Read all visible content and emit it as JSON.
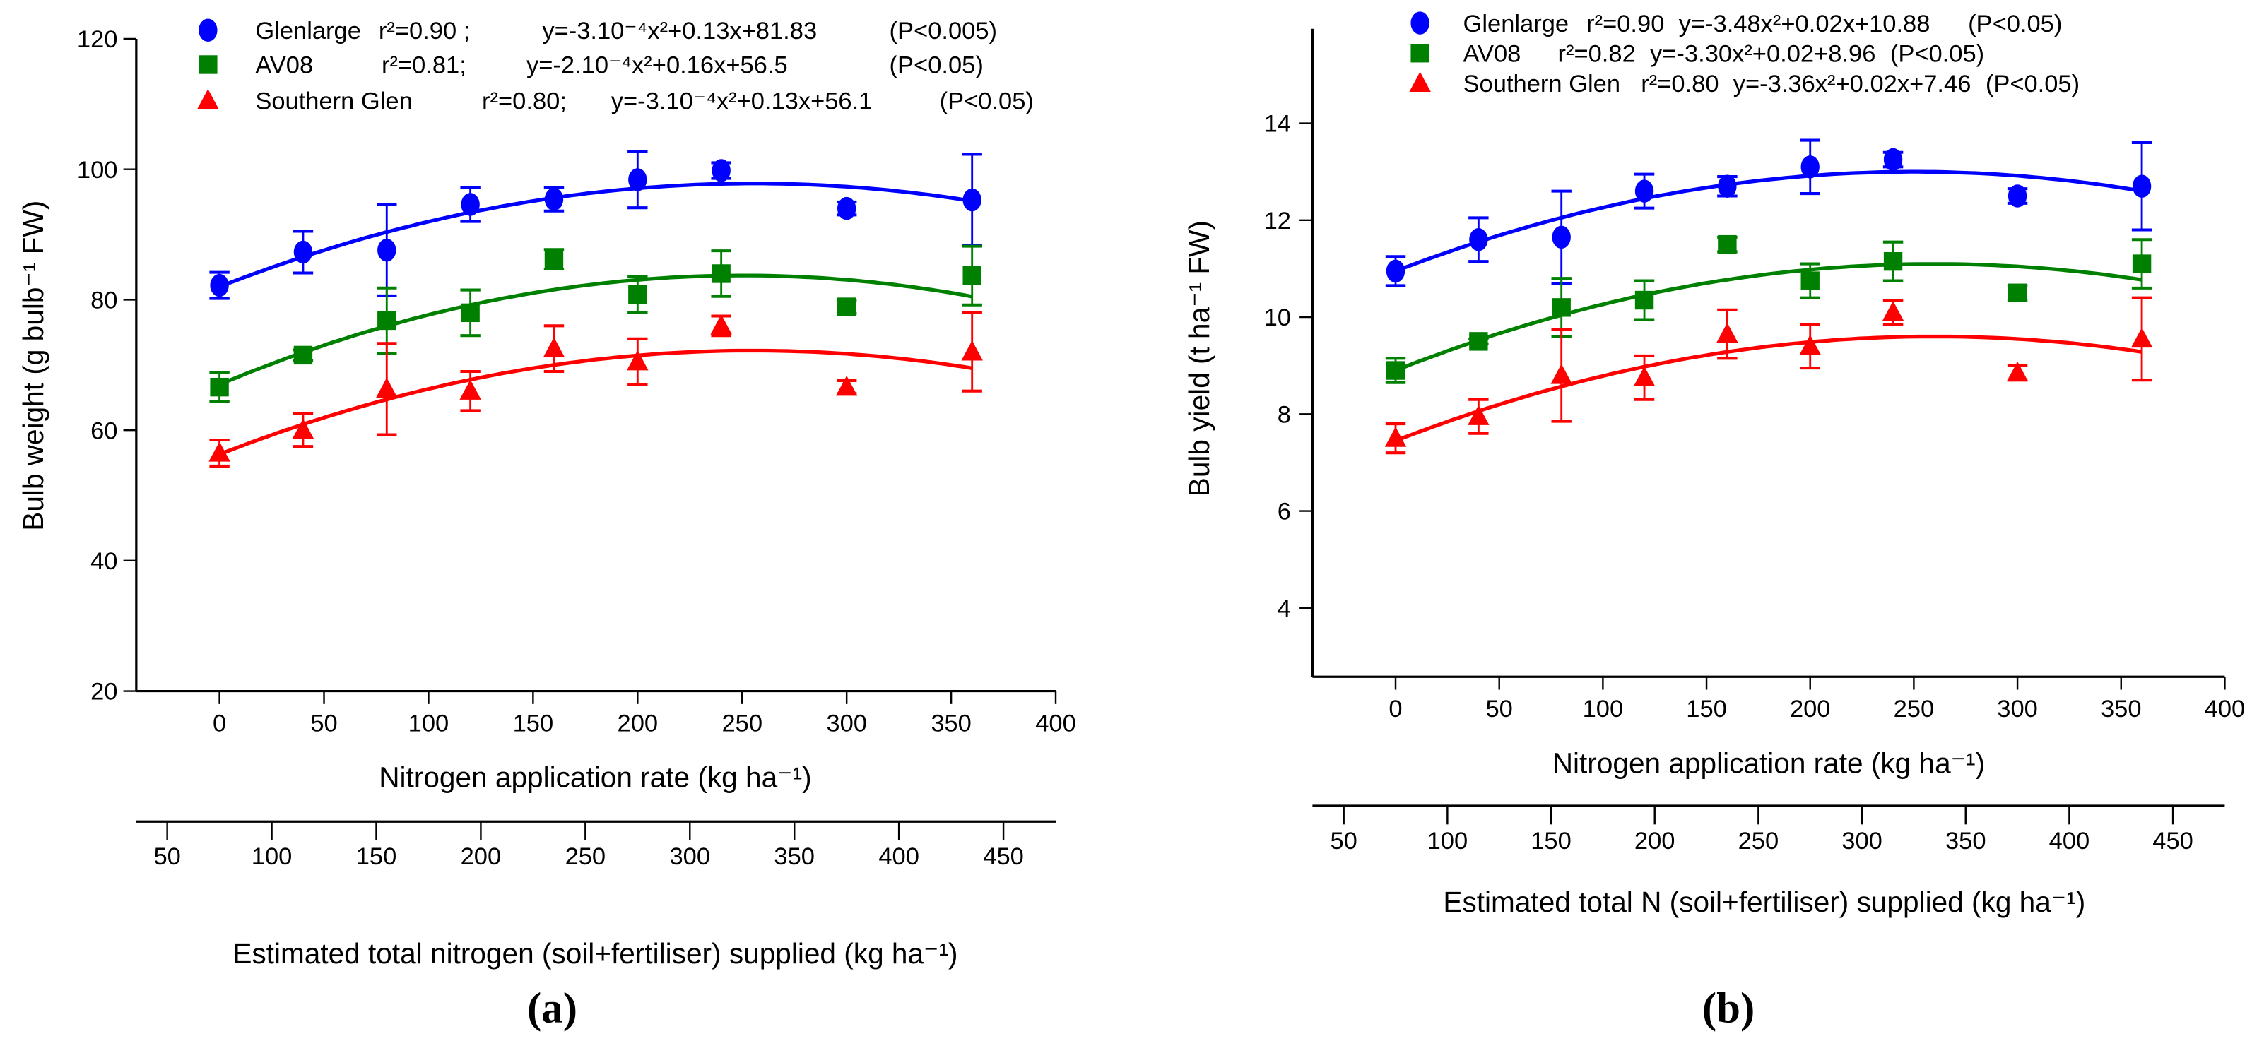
{
  "chart_data": [
    {
      "type": "scatter",
      "panel_label": "(a)",
      "xlabel": "Nitrogen application rate (kg ha⁻¹)",
      "ylabel": "Bulb weight (g bulb⁻¹ FW)",
      "xlim": [
        -39.8,
        400
      ],
      "ylim": [
        20,
        120
      ],
      "xticks": [
        0,
        50,
        100,
        150,
        200,
        250,
        300,
        350,
        400
      ],
      "yticks": [
        20,
        40,
        60,
        80,
        100,
        120
      ],
      "secondary_x": {
        "label": "Estimated total nitrogen (soil+fertiliser) supplied (kg ha⁻¹)",
        "offset": 75,
        "ticks": [
          50,
          100,
          150,
          200,
          250,
          300,
          350,
          400,
          450
        ]
      },
      "legend_position": "top",
      "x": [
        0,
        40,
        80,
        120,
        160,
        200,
        240,
        300,
        360
      ],
      "series": [
        {
          "name": "Glenlarge",
          "marker": "circle",
          "color": "#0000ff",
          "r2": "r²=0.90 ;",
          "equation": "y=-3.10⁻⁴x²+0.13x+81.83",
          "p": "(P<0.005)",
          "values": [
            82.2,
            87.3,
            87.6,
            94.6,
            95.4,
            98.4,
            99.8,
            94.0,
            95.3
          ],
          "errors": [
            2.0,
            3.2,
            7.0,
            2.6,
            1.8,
            4.3,
            1.2,
            1.0,
            7.0
          ],
          "fit_curve": [
            -0.000243,
            0.124,
            82.0
          ]
        },
        {
          "name": "AV08",
          "marker": "square",
          "color": "#008000",
          "r2": "r²=0.81;",
          "equation": "y=-2.10⁻⁴x²+0.16x+56.5",
          "p": "(P<0.05)",
          "values": [
            66.6,
            71.5,
            76.8,
            78.0,
            86.2,
            80.8,
            84.0,
            78.9,
            83.7
          ],
          "errors": [
            2.2,
            0.8,
            5.0,
            3.5,
            1.5,
            2.8,
            3.5,
            1.0,
            4.5
          ],
          "fit_curve": [
            -0.000267,
            0.1336,
            67.0
          ]
        },
        {
          "name": "Southern Glen",
          "marker": "triangle",
          "color": "#ff0000",
          "r2": "r²=0.80;",
          "equation": "y=-3.10⁻⁴x²+0.13x+56.1",
          "p": "(P<0.05)",
          "values": [
            56.5,
            60.0,
            66.3,
            66.0,
            72.5,
            70.5,
            76.0,
            66.6,
            72.0
          ],
          "errors": [
            2.0,
            2.5,
            7.0,
            3.0,
            3.5,
            3.5,
            1.5,
            1.0,
            6.0
          ],
          "fit_curve": [
            -0.0002445,
            0.1247,
            56.3
          ]
        }
      ]
    },
    {
      "type": "scatter",
      "panel_label": "(b)",
      "xlabel": "Nitrogen application rate (kg ha⁻¹)",
      "ylabel": "Bulb yield (t ha⁻¹ FW)",
      "xlim": [
        -40.1,
        400
      ],
      "ylim": [
        2.58,
        15.95
      ],
      "xticks": [
        0,
        50,
        100,
        150,
        200,
        250,
        300,
        350,
        400
      ],
      "yticks": [
        4,
        6,
        8,
        10,
        12,
        14
      ],
      "secondary_x": {
        "label": "Estimated total N (soil+fertiliser) supplied (kg ha⁻¹)",
        "offset": 75,
        "ticks": [
          50,
          100,
          150,
          200,
          250,
          300,
          350,
          400,
          450
        ]
      },
      "legend_position": "top",
      "x": [
        0,
        40,
        80,
        120,
        160,
        200,
        240,
        300,
        360
      ],
      "series": [
        {
          "name": "Glenlarge",
          "marker": "circle",
          "color": "#0000ff",
          "r2": "r²=0.90",
          "equation": "y=-3.48x²+0.02x+10.88",
          "p": "(P<0.05)",
          "values": [
            10.95,
            11.6,
            11.65,
            12.6,
            12.7,
            13.1,
            13.25,
            12.5,
            12.7
          ],
          "errors": [
            0.3,
            0.45,
            0.95,
            0.35,
            0.2,
            0.55,
            0.15,
            0.15,
            0.9
          ],
          "fit_curve": [
            -3.28e-05,
            0.0164,
            10.95
          ]
        },
        {
          "name": "AV08",
          "marker": "square",
          "color": "#008000",
          "r2": "r²=0.82",
          "equation": "y=-3.30x²+0.02+8.96",
          "p": "(P<0.05)",
          "values": [
            8.9,
            9.5,
            10.2,
            10.35,
            11.5,
            10.75,
            11.15,
            10.5,
            11.1
          ],
          "errors": [
            0.25,
            0.05,
            0.6,
            0.4,
            0.15,
            0.35,
            0.4,
            0.15,
            0.5
          ],
          "fit_curve": [
            -3.25e-05,
            0.0169,
            8.9
          ]
        },
        {
          "name": "Southern Glen",
          "marker": "triangle",
          "color": "#ff0000",
          "r2": "r²=0.80",
          "equation": "y=-3.36x²+0.02x+7.46",
          "p": "(P<0.05)",
          "values": [
            7.5,
            7.95,
            8.8,
            8.75,
            9.65,
            9.4,
            10.1,
            8.85,
            9.55
          ],
          "errors": [
            0.3,
            0.35,
            0.95,
            0.45,
            0.5,
            0.45,
            0.25,
            0.15,
            0.85
          ],
          "fit_curve": [
            -3.18e-05,
            0.01654,
            7.45
          ]
        }
      ]
    }
  ]
}
